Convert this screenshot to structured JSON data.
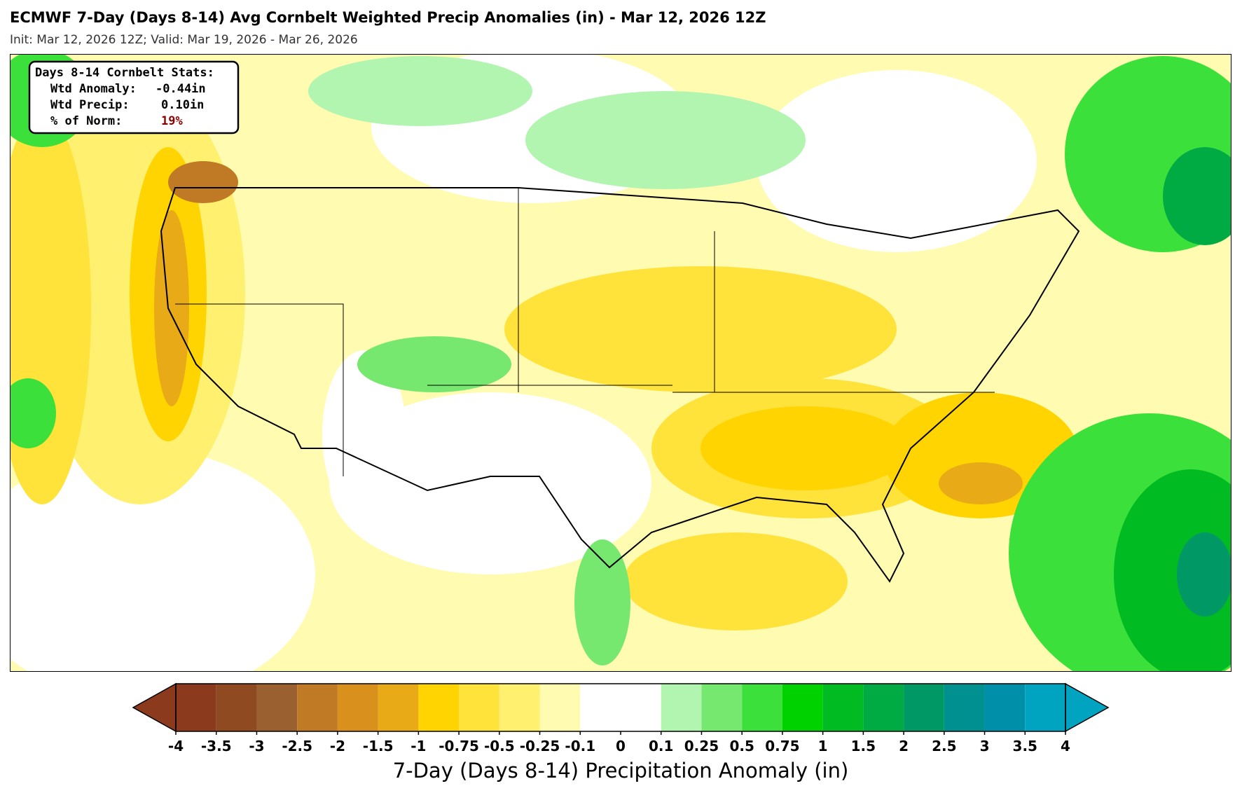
{
  "header": {
    "title": "ECMWF 7-Day (Days 8-14) Avg Cornbelt Weighted Precip Anomalies (in) - Mar 12, 2026 12Z",
    "subtitle": "Init: Mar 12, 2026 12Z; Valid: Mar 19, 2026 - Mar 26, 2026"
  },
  "stats": {
    "title": "Days 8-14 Cornbelt Stats:",
    "rows": [
      {
        "label": "Wtd Anomaly:",
        "value": "-0.44in"
      },
      {
        "label": "Wtd Precip:",
        "value": "0.10in"
      },
      {
        "label": "% of Norm:",
        "value": "19%"
      }
    ]
  },
  "colorbar": {
    "label": "7-Day (Days 8-14) Precipitation Anomaly (in)",
    "ticks": [
      -4,
      -3.5,
      -3,
      -2.5,
      -2,
      -1.5,
      -1,
      -0.75,
      -0.5,
      -0.25,
      -0.1,
      0,
      0.1,
      0.25,
      0.5,
      0.75,
      1,
      1.5,
      2,
      2.5,
      3,
      3.5,
      4
    ],
    "colors": [
      "#8b3a1e",
      "#8f4a22",
      "#9a6030",
      "#c07a25",
      "#d9901c",
      "#e8aa16",
      "#ffd400",
      "#ffe23a",
      "#fff070",
      "#fffbb0",
      "#ffffff",
      "#ffffff",
      "#b2f5b0",
      "#76e870",
      "#3ce03a",
      "#00d200",
      "#00bb22",
      "#00ab44",
      "#009966",
      "#009090",
      "#008fa8",
      "#00a4c0"
    ]
  }
}
